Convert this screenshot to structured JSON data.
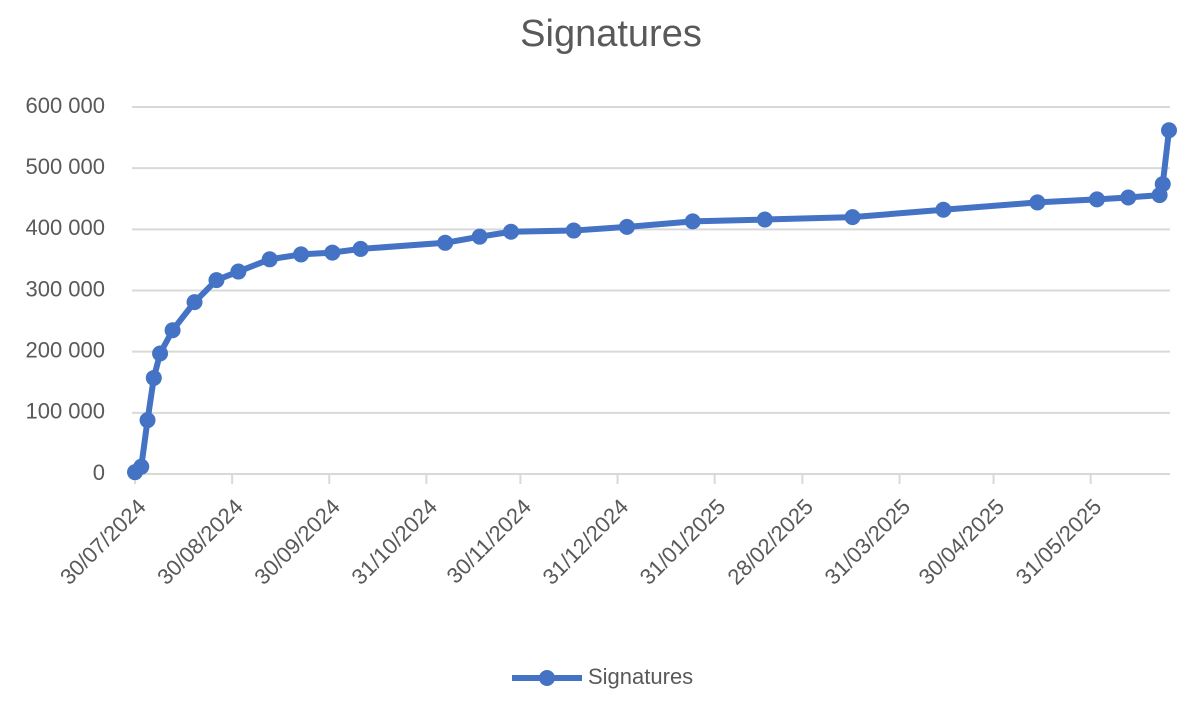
{
  "chart_data": {
    "type": "line",
    "title": "Signatures",
    "x": [
      "30/07/2024",
      "01/08/2024",
      "03/08/2024",
      "05/08/2024",
      "07/08/2024",
      "11/08/2024",
      "18/08/2024",
      "25/08/2024",
      "01/09/2024",
      "11/09/2024",
      "21/09/2024",
      "01/10/2024",
      "10/10/2024",
      "06/11/2024",
      "17/11/2024",
      "27/11/2024",
      "17/12/2024",
      "03/01/2025",
      "24/01/2025",
      "16/02/2025",
      "16/03/2025",
      "14/04/2025",
      "14/05/2025",
      "02/06/2025",
      "12/06/2025",
      "22/06/2025",
      "23/06/2025",
      "25/06/2025"
    ],
    "series": [
      {
        "name": "Signatures",
        "color": "#4472c4",
        "values": [
          3000,
          12000,
          88000,
          157000,
          197000,
          235000,
          281000,
          317000,
          331000,
          351000,
          359000,
          362000,
          368000,
          378000,
          388000,
          396000,
          398000,
          404000,
          413000,
          416000,
          420000,
          432000,
          444000,
          449000,
          452000,
          456000,
          474000,
          562000
        ]
      }
    ],
    "xlim": [
      "30/07/2024",
      "25/06/2025"
    ],
    "xticks": [
      "30/07/2024",
      "30/08/2024",
      "30/09/2024",
      "31/10/2024",
      "30/11/2024",
      "31/12/2024",
      "31/01/2025",
      "28/02/2025",
      "31/03/2025",
      "30/04/2025",
      "31/05/2025"
    ],
    "ylim": [
      0,
      600000
    ],
    "yticks": [
      0,
      {
        "value": 100000,
        "label": "100 000"
      },
      {
        "value": 200000,
        "label": "200 000"
      },
      {
        "value": 300000,
        "label": "300 000"
      },
      {
        "value": 400000,
        "label": "400 000"
      },
      {
        "value": 500000,
        "label": "500 000"
      },
      {
        "value": 600000,
        "label": "600 000"
      }
    ],
    "grid": true,
    "legend": "bottom"
  }
}
